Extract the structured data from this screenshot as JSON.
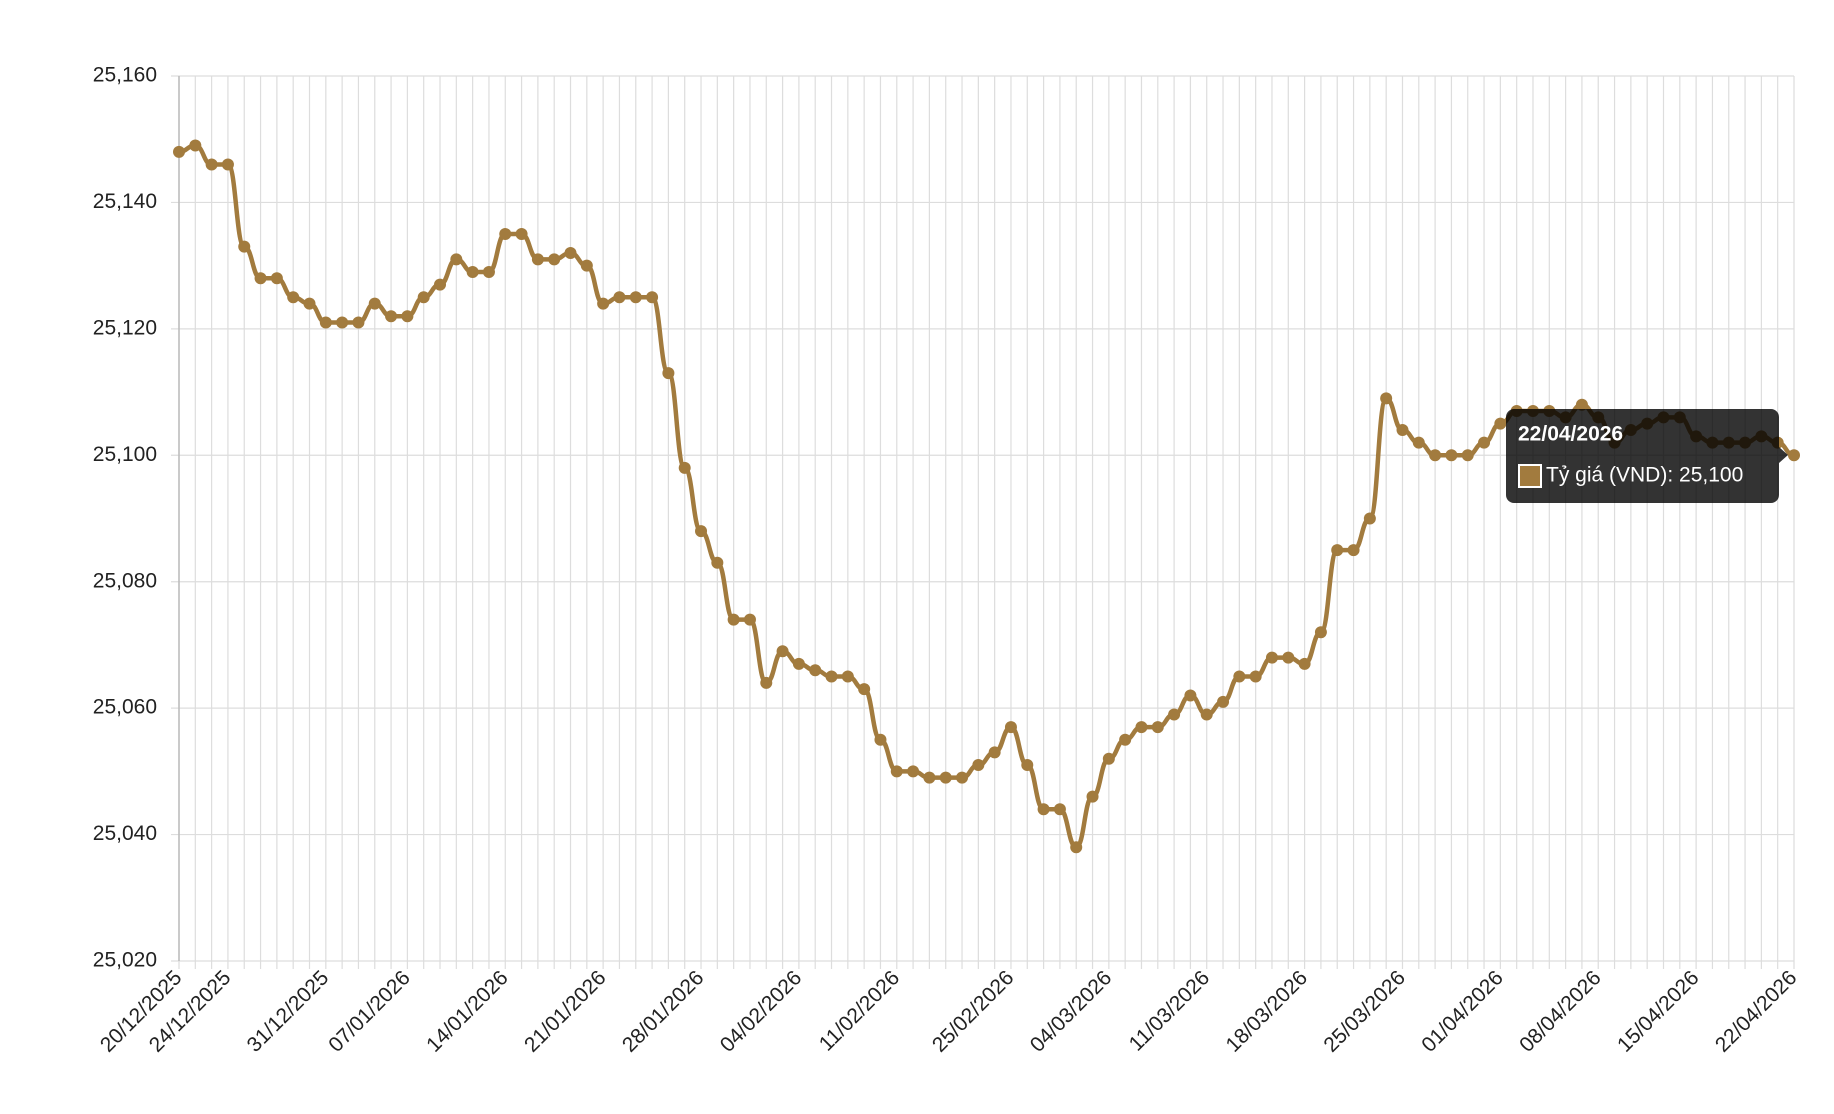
{
  "chart_data": {
    "type": "line",
    "categories": [
      "20/12/2025",
      null,
      null,
      "24/12/2025",
      null,
      null,
      null,
      null,
      null,
      "31/12/2025",
      null,
      null,
      null,
      null,
      "07/01/2026",
      null,
      null,
      null,
      null,
      null,
      "14/01/2026",
      null,
      null,
      null,
      null,
      null,
      "21/01/2026",
      null,
      null,
      null,
      null,
      null,
      "28/01/2026",
      null,
      null,
      null,
      null,
      null,
      "04/02/2026",
      null,
      null,
      null,
      null,
      null,
      "11/02/2026",
      null,
      null,
      null,
      null,
      null,
      null,
      "25/02/2026",
      null,
      null,
      null,
      null,
      null,
      "04/03/2026",
      null,
      null,
      null,
      null,
      null,
      "11/03/2026",
      null,
      null,
      null,
      null,
      null,
      "18/03/2026",
      null,
      null,
      null,
      null,
      null,
      "25/03/2026",
      null,
      null,
      null,
      null,
      null,
      "01/04/2026",
      null,
      null,
      null,
      null,
      null,
      "08/04/2026",
      null,
      null,
      null,
      null,
      null,
      "15/04/2026",
      null,
      null,
      null,
      null,
      null,
      "22/04/2026"
    ],
    "series": [
      {
        "name": "Tỷ giá (VND)",
        "color": "#a27b3e",
        "values": [
          25148,
          25149,
          25146,
          25146,
          25133,
          25128,
          25128,
          25125,
          25124,
          25121,
          25121,
          25121,
          25124,
          25122,
          25122,
          25125,
          25127,
          25131,
          25129,
          25129,
          25135,
          25135,
          25131,
          25131,
          25132,
          25130,
          25124,
          25125,
          25125,
          25125,
          25113,
          25098,
          25088,
          25083,
          25074,
          25074,
          25064,
          25069,
          25067,
          25066,
          25065,
          25065,
          25063,
          25055,
          25050,
          25050,
          25049,
          25049,
          25049,
          25051,
          25053,
          25057,
          25051,
          25044,
          25044,
          25038,
          25046,
          25052,
          25055,
          25057,
          25057,
          25059,
          25062,
          25059,
          25061,
          25065,
          25065,
          25068,
          25068,
          25067,
          25072,
          25085,
          25085,
          25090,
          25109,
          25104,
          25102,
          25100,
          25100,
          25100,
          25102,
          25105,
          25107,
          25107,
          25107,
          25106,
          25108,
          25106,
          25102,
          25104,
          25105,
          25106,
          25106,
          25103,
          25102,
          25102,
          25102,
          25103,
          25102,
          25100
        ]
      }
    ],
    "ylim": [
      25020,
      25160
    ],
    "yticks": [
      {
        "value": 25020,
        "label": "25,020"
      },
      {
        "value": 25040,
        "label": "25,040"
      },
      {
        "value": 25060,
        "label": "25,060"
      },
      {
        "value": 25080,
        "label": "25,080"
      },
      {
        "value": 25100,
        "label": "25,100"
      },
      {
        "value": 25120,
        "label": "25,120"
      },
      {
        "value": 25140,
        "label": "25,140"
      },
      {
        "value": 25160,
        "label": "25,160"
      }
    ],
    "grid": true,
    "tooltip": {
      "title": "22/04/2026",
      "text": "Tỷ giá (VND): 25,100"
    }
  }
}
